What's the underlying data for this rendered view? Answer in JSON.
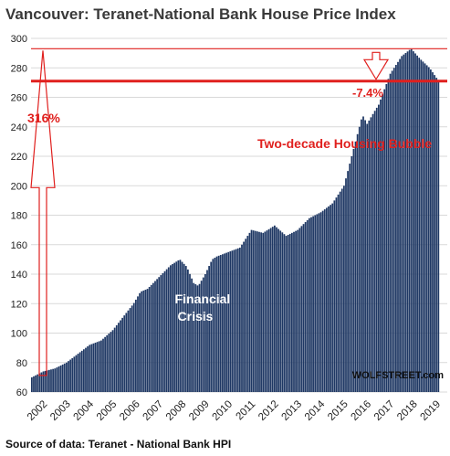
{
  "chart_data": {
    "type": "bar",
    "title": "Vancouver: Teranet-National  Bank House Price Index",
    "ylim": [
      60,
      300
    ],
    "yticks": [
      60,
      80,
      100,
      120,
      140,
      160,
      180,
      200,
      220,
      240,
      260,
      280,
      300
    ],
    "xticks": [
      "2002",
      "2003",
      "2004",
      "2005",
      "2006",
      "2007",
      "2008",
      "2009",
      "2010",
      "2011",
      "2012",
      "2013",
      "2014",
      "2015",
      "2016",
      "2017",
      "2018",
      "2019"
    ],
    "grid": true,
    "legend": "none",
    "bar_color": "#1f3864",
    "anchors": [
      [
        2002.0,
        70
      ],
      [
        2002.5,
        74
      ],
      [
        2003.0,
        76
      ],
      [
        2003.5,
        80
      ],
      [
        2004.0,
        86
      ],
      [
        2004.5,
        92
      ],
      [
        2005.0,
        95
      ],
      [
        2005.5,
        102
      ],
      [
        2006.0,
        112
      ],
      [
        2006.4,
        120
      ],
      [
        2006.7,
        128
      ],
      [
        2007.0,
        130
      ],
      [
        2007.5,
        138
      ],
      [
        2008.0,
        146
      ],
      [
        2008.4,
        150
      ],
      [
        2008.7,
        145
      ],
      [
        2009.0,
        134
      ],
      [
        2009.2,
        132
      ],
      [
        2009.5,
        140
      ],
      [
        2009.8,
        150
      ],
      [
        2010.0,
        152
      ],
      [
        2010.5,
        155
      ],
      [
        2011.0,
        158
      ],
      [
        2011.5,
        170
      ],
      [
        2012.0,
        168
      ],
      [
        2012.5,
        173
      ],
      [
        2013.0,
        166
      ],
      [
        2013.5,
        170
      ],
      [
        2014.0,
        178
      ],
      [
        2014.5,
        182
      ],
      [
        2015.0,
        188
      ],
      [
        2015.5,
        200
      ],
      [
        2016.0,
        230
      ],
      [
        2016.3,
        248
      ],
      [
        2016.5,
        242
      ],
      [
        2016.8,
        250
      ],
      [
        2017.0,
        255
      ],
      [
        2017.5,
        276
      ],
      [
        2018.0,
        288
      ],
      [
        2018.4,
        293
      ],
      [
        2018.8,
        286
      ],
      [
        2019.2,
        280
      ],
      [
        2019.6,
        271
      ]
    ],
    "annotations": {
      "pct_gain": "316%",
      "pct_drop": "-7.4%",
      "bubble": "Two-decade Housing Bubble",
      "crisis_line1": "Financial",
      "crisis_line2": "Crisis"
    },
    "reference_lines": {
      "peak": 293,
      "current": 271,
      "start": 70
    }
  },
  "footer": {
    "source": "Source of data: Teranet - National Bank HPI",
    "brand": "WOLFSTREET.com"
  },
  "colors": {
    "accent": "#e0201e",
    "bars": "#1f3864"
  }
}
